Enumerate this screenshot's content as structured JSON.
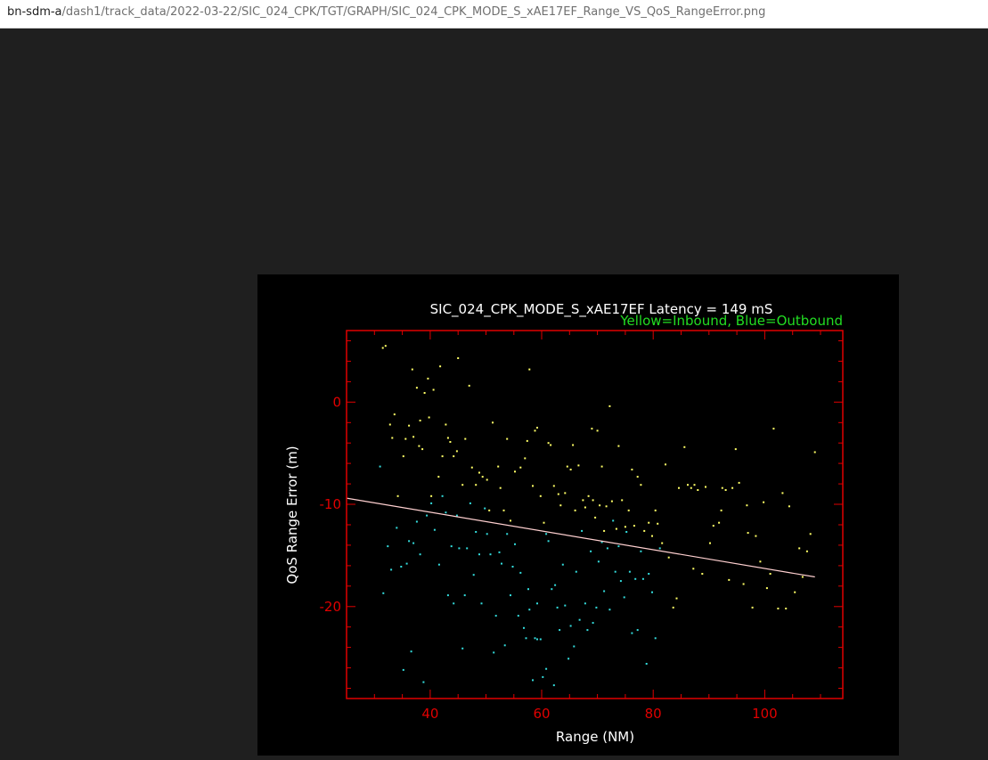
{
  "browser": {
    "url_host": "bn-sdm-a",
    "url_path": "/dash1/track_data/2022-03-22/SIC_024_CPK/TGT/GRAPH/SIC_024_CPK_MODE_S_xAE17EF_Range_VS_QoS_RangeError.png"
  },
  "colors": {
    "page_background": "#1f1f1f",
    "plot_background": "#000000",
    "axis": "#e00000",
    "inbound": "#ffff66",
    "outbound": "#33dddd",
    "trend": "#ffd0d0",
    "legend": "#22dd22",
    "title": "#ffffff"
  },
  "chart_data": {
    "type": "scatter",
    "title": "SIC_024_CPK_MODE_S_xAE17EF Latency = 149 mS",
    "legend_text": "Yellow=Inbound, Blue=Outbound",
    "legend_placement": "top-right",
    "xlabel": "Range (NM)",
    "ylabel": "QoS Range Error (m)",
    "xlim": [
      25,
      114
    ],
    "ylim": [
      -29,
      7
    ],
    "xticks": [
      40,
      60,
      80,
      100
    ],
    "yticks": [
      0,
      -10,
      -20
    ],
    "grid": false,
    "trend_line": {
      "x": [
        25,
        109
      ],
      "y": [
        -9.4,
        -17.1
      ]
    },
    "series": [
      {
        "name": "Inbound",
        "color": "yellow",
        "points": [
          [
            31.5,
            5.3
          ],
          [
            32,
            5.5
          ],
          [
            32.8,
            -2.2
          ],
          [
            33.2,
            -3.5
          ],
          [
            33.6,
            -1.2
          ],
          [
            34.2,
            -9.2
          ],
          [
            35.2,
            -5.3
          ],
          [
            35.6,
            -3.6
          ],
          [
            36.2,
            -2.3
          ],
          [
            36.8,
            3.2
          ],
          [
            37,
            -3.4
          ],
          [
            37.6,
            1.4
          ],
          [
            38,
            -4.3
          ],
          [
            38.2,
            -1.8
          ],
          [
            38.6,
            -4.6
          ],
          [
            39,
            0.9
          ],
          [
            39.6,
            2.3
          ],
          [
            39.8,
            -1.5
          ],
          [
            40.2,
            -9.2
          ],
          [
            40.6,
            1.2
          ],
          [
            41.5,
            -7.3
          ],
          [
            41.8,
            3.5
          ],
          [
            42.2,
            -5.3
          ],
          [
            42.8,
            -2.2
          ],
          [
            43.2,
            -3.5
          ],
          [
            43.6,
            -3.9
          ],
          [
            44.2,
            -5.3
          ],
          [
            44.8,
            -4.8
          ],
          [
            45,
            4.3
          ],
          [
            45.8,
            -8.1
          ],
          [
            46.3,
            -3.6
          ],
          [
            47,
            1.6
          ],
          [
            47.5,
            -6.4
          ],
          [
            48.2,
            -8.1
          ],
          [
            48.8,
            -6.9
          ],
          [
            49.4,
            -7.3
          ],
          [
            50.2,
            -7.6
          ],
          [
            50.6,
            -10.6
          ],
          [
            51.2,
            -2
          ],
          [
            52.2,
            -6.3
          ],
          [
            52.6,
            -8.4
          ],
          [
            53.2,
            -10.6
          ],
          [
            53.8,
            -3.6
          ],
          [
            54.4,
            -11.6
          ],
          [
            55.2,
            -6.8
          ],
          [
            56.2,
            -6.4
          ],
          [
            57,
            -5.5
          ],
          [
            57.4,
            -3.8
          ],
          [
            57.8,
            3.2
          ],
          [
            58.4,
            -8.2
          ],
          [
            58.8,
            -2.8
          ],
          [
            59.2,
            -2.5
          ],
          [
            59.8,
            -9.2
          ],
          [
            60.4,
            -11.8
          ],
          [
            61.2,
            -4
          ],
          [
            61.6,
            -4.2
          ],
          [
            62.2,
            -8.2
          ],
          [
            63,
            -9
          ],
          [
            63.4,
            -10.1
          ],
          [
            64.2,
            -8.9
          ],
          [
            64.6,
            -6.3
          ],
          [
            65.2,
            -6.6
          ],
          [
            65.6,
            -4.2
          ],
          [
            66,
            -10.6
          ],
          [
            66.6,
            -6.2
          ],
          [
            67.4,
            -9.6
          ],
          [
            67.8,
            -10.3
          ],
          [
            68.4,
            -9.2
          ],
          [
            69,
            -2.6
          ],
          [
            69.2,
            -9.6
          ],
          [
            69.6,
            -11.3
          ],
          [
            70,
            -2.8
          ],
          [
            70.4,
            -10.1
          ],
          [
            70.8,
            -6.3
          ],
          [
            71.2,
            -12.6
          ],
          [
            71.6,
            -10.2
          ],
          [
            72.2,
            -0.4
          ],
          [
            72.6,
            -9.7
          ],
          [
            73.4,
            -12.4
          ],
          [
            73.8,
            -4.3
          ],
          [
            74.4,
            -9.6
          ],
          [
            75,
            -12.2
          ],
          [
            75.6,
            -10.6
          ],
          [
            76.2,
            -6.6
          ],
          [
            76.6,
            -12.1
          ],
          [
            77.2,
            -7.3
          ],
          [
            77.8,
            -8.1
          ],
          [
            78.4,
            -12.6
          ],
          [
            79.2,
            -11.8
          ],
          [
            79.8,
            -13.1
          ],
          [
            80.4,
            -10.6
          ],
          [
            80.8,
            -11.9
          ],
          [
            81.6,
            -13.8
          ],
          [
            82.2,
            -6.1
          ],
          [
            82.8,
            -15.2
          ],
          [
            83.6,
            -20.1
          ],
          [
            84.2,
            -19.2
          ],
          [
            84.6,
            -8.4
          ],
          [
            85.6,
            -4.4
          ],
          [
            86.2,
            -8.1
          ],
          [
            86.8,
            -8.4
          ],
          [
            87.4,
            -8.1
          ],
          [
            88,
            -8.6
          ],
          [
            88.8,
            -16.8
          ],
          [
            89.4,
            -8.3
          ],
          [
            90.2,
            -13.8
          ],
          [
            90.8,
            -12.1
          ],
          [
            91.8,
            -11.8
          ],
          [
            92.4,
            -8.4
          ],
          [
            93,
            -8.6
          ],
          [
            93.6,
            -17.4
          ],
          [
            94.2,
            -8.4
          ],
          [
            94.8,
            -4.6
          ],
          [
            95.4,
            -7.9
          ],
          [
            96.2,
            -17.8
          ],
          [
            97,
            -12.8
          ],
          [
            97.8,
            -20.1
          ],
          [
            98.4,
            -13.1
          ],
          [
            99.2,
            -15.6
          ],
          [
            99.8,
            -9.8
          ],
          [
            100.4,
            -18.2
          ],
          [
            101,
            -16.8
          ],
          [
            101.6,
            -2.6
          ],
          [
            102.4,
            -20.2
          ],
          [
            103.2,
            -8.9
          ],
          [
            103.8,
            -20.2
          ],
          [
            104.4,
            -10.2
          ],
          [
            105.4,
            -18.6
          ],
          [
            106.2,
            -14.3
          ],
          [
            106.8,
            -17.1
          ],
          [
            107.6,
            -14.6
          ],
          [
            108.2,
            -12.9
          ],
          [
            109,
            -4.9
          ],
          [
            96.8,
            -10.1
          ],
          [
            92.2,
            -10.6
          ],
          [
            87.2,
            -16.3
          ]
        ]
      },
      {
        "name": "Outbound",
        "color": "blue",
        "points": [
          [
            31,
            -6.3
          ],
          [
            31.6,
            -18.7
          ],
          [
            32.4,
            -14.1
          ],
          [
            33,
            -16.4
          ],
          [
            34,
            -12.3
          ],
          [
            34.8,
            -16.1
          ],
          [
            35.2,
            -26.2
          ],
          [
            35.8,
            -15.8
          ],
          [
            36.2,
            -13.6
          ],
          [
            36.6,
            -24.4
          ],
          [
            37,
            -13.8
          ],
          [
            37.6,
            -11.7
          ],
          [
            38.2,
            -14.9
          ],
          [
            38.8,
            -27.4
          ],
          [
            39.4,
            -11.1
          ],
          [
            40.2,
            -9.9
          ],
          [
            40.8,
            -12.5
          ],
          [
            41.6,
            -15.9
          ],
          [
            42.2,
            -9.2
          ],
          [
            42.8,
            -10.8
          ],
          [
            43.2,
            -18.9
          ],
          [
            43.8,
            -14.1
          ],
          [
            44.2,
            -19.7
          ],
          [
            44.8,
            -11.1
          ],
          [
            45.2,
            -14.3
          ],
          [
            45.8,
            -24.1
          ],
          [
            46.2,
            -18.9
          ],
          [
            46.6,
            -14.3
          ],
          [
            47.2,
            -9.9
          ],
          [
            47.8,
            -16.9
          ],
          [
            48.2,
            -12.7
          ],
          [
            48.8,
            -14.9
          ],
          [
            49.2,
            -19.7
          ],
          [
            49.8,
            -10.4
          ],
          [
            50.2,
            -12.9
          ],
          [
            50.8,
            -14.9
          ],
          [
            51.4,
            -24.5
          ],
          [
            51.8,
            -20.9
          ],
          [
            52.4,
            -14.7
          ],
          [
            52.8,
            -15.8
          ],
          [
            53.4,
            -23.8
          ],
          [
            53.8,
            -12.9
          ],
          [
            54.4,
            -18.9
          ],
          [
            54.8,
            -16.1
          ],
          [
            55.2,
            -13.9
          ],
          [
            55.8,
            -20.9
          ],
          [
            56.2,
            -16.7
          ],
          [
            56.8,
            -22.1
          ],
          [
            57.2,
            -23.1
          ],
          [
            57.8,
            -20.3
          ],
          [
            58.4,
            -27.2
          ],
          [
            58.8,
            -23.1
          ],
          [
            59.2,
            -19.7
          ],
          [
            59.8,
            -23.2
          ],
          [
            60.2,
            -26.9
          ],
          [
            60.8,
            -12.9
          ],
          [
            61.2,
            -13.6
          ],
          [
            61.8,
            -18.3
          ],
          [
            62.2,
            -27.7
          ],
          [
            62.8,
            -20.1
          ],
          [
            63.2,
            -22.3
          ],
          [
            63.8,
            -15.9
          ],
          [
            64.2,
            -19.9
          ],
          [
            64.8,
            -25.1
          ],
          [
            65.2,
            -21.9
          ],
          [
            65.8,
            -23.9
          ],
          [
            66.2,
            -16.6
          ],
          [
            66.8,
            -21.3
          ],
          [
            67.2,
            -12.6
          ],
          [
            67.8,
            -19.7
          ],
          [
            68.2,
            -22.3
          ],
          [
            68.8,
            -14.6
          ],
          [
            69.2,
            -21.6
          ],
          [
            69.8,
            -20.1
          ],
          [
            70.2,
            -15.6
          ],
          [
            70.8,
            -13.7
          ],
          [
            71.2,
            -18.5
          ],
          [
            71.8,
            -14.3
          ],
          [
            72.2,
            -20.3
          ],
          [
            72.8,
            -11.6
          ],
          [
            73.2,
            -16.6
          ],
          [
            73.8,
            -14.1
          ],
          [
            74.2,
            -17.5
          ],
          [
            74.8,
            -19.1
          ],
          [
            75.2,
            -12.7
          ],
          [
            75.8,
            -16.6
          ],
          [
            76.2,
            -22.6
          ],
          [
            76.8,
            -17.3
          ],
          [
            77.2,
            -22.3
          ],
          [
            77.8,
            -14.6
          ],
          [
            78.2,
            -17.3
          ],
          [
            78.8,
            -25.6
          ],
          [
            79.2,
            -16.8
          ],
          [
            79.8,
            -18.6
          ],
          [
            80.4,
            -23.1
          ],
          [
            81.2,
            -14.3
          ],
          [
            60.8,
            -26.1
          ],
          [
            59.2,
            -23.2
          ],
          [
            62.4,
            -17.9
          ],
          [
            57.6,
            -18.3
          ]
        ]
      }
    ]
  }
}
